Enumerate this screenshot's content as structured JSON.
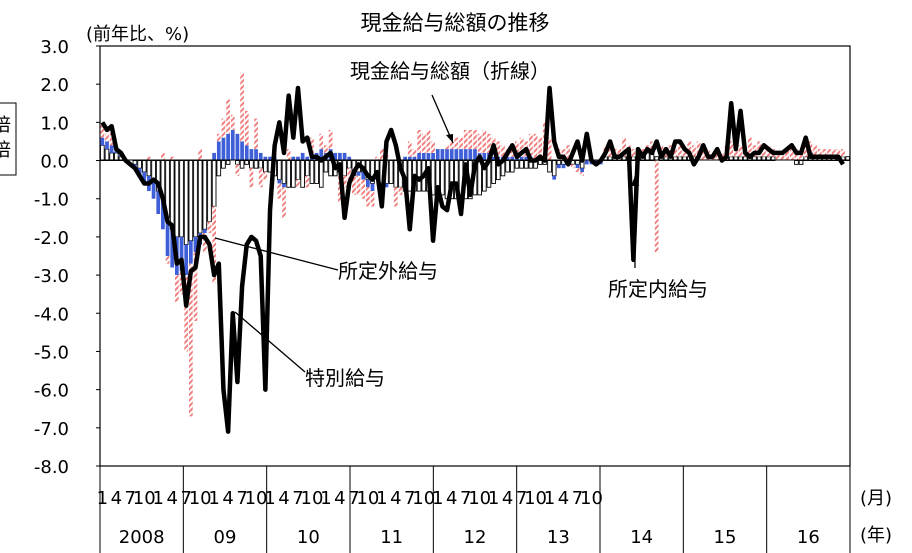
{
  "chart_data": {
    "type": "bar",
    "title": "現金給与総額の推移",
    "ylabel": "(前年比、%)",
    "ylim": [
      -8.0,
      3.0
    ],
    "yticks": [
      "3.0",
      "2.0",
      "1.0",
      "0.0",
      "-1.0",
      "-2.0",
      "-3.0",
      "-4.0",
      "-5.0",
      "-6.0",
      "-7.0",
      "-8.0"
    ],
    "legend_fragments": [
      "倍",
      "倍"
    ],
    "x_unit_month": "(月)",
    "x_unit_year": "(年)",
    "month_tick_labels": [
      "1",
      "4",
      "7",
      "10"
    ],
    "years": [
      "2008",
      "09",
      "10",
      "11",
      "12",
      "13",
      "14",
      "15",
      "16"
    ],
    "annotations": [
      "現金給与総額（折線）",
      "所定外給与",
      "所定内給与",
      "特別給与"
    ],
    "series": [
      {
        "name": "所定内給与",
        "color": "#ffffff",
        "values": [
          0.4,
          0.3,
          0.2,
          0.2,
          0.1,
          0.0,
          0.0,
          -0.1,
          -0.2,
          -0.3,
          -0.4,
          -0.5,
          -0.8,
          -1.0,
          -1.5,
          -1.8,
          -2.0,
          -2.0,
          -2.2,
          -2.1,
          -2.0,
          -1.9,
          -1.8,
          -1.6,
          -1.2,
          -0.4,
          -0.2,
          -0.1,
          0.0,
          -0.1,
          -0.2,
          -0.1,
          -0.2,
          -0.2,
          -0.2,
          -0.3,
          -0.3,
          -0.4,
          -0.5,
          -0.6,
          -0.7,
          -0.7,
          -0.5,
          -0.7,
          -0.4,
          -0.6,
          -0.6,
          -0.7,
          -0.3,
          -0.4,
          -0.4,
          -0.3,
          -0.4,
          -0.2,
          -0.4,
          -0.3,
          -0.3,
          -0.5,
          -0.6,
          -0.3,
          -0.6,
          -0.6,
          -0.6,
          -0.7,
          -0.7,
          -0.8,
          -0.8,
          -0.8,
          -0.8,
          -0.8,
          -0.8,
          -0.9,
          -0.9,
          -0.9,
          -1.0,
          -1.0,
          -1.0,
          -0.9,
          -1.0,
          -1.0,
          -0.9,
          -0.9,
          -0.8,
          -0.7,
          -0.6,
          -0.5,
          -0.4,
          -0.3,
          -0.3,
          -0.2,
          -0.2,
          -0.2,
          -0.2,
          -0.2,
          -0.1,
          -0.1,
          -0.3,
          -0.4,
          -0.1,
          -0.1,
          -0.1,
          -0.1,
          -0.1,
          -0.2,
          0.0,
          0.0,
          0.0,
          0.0,
          0.1,
          0.1,
          0.1,
          0.1,
          0.1,
          0.1,
          0.1,
          0.1,
          0.1,
          0.2,
          0.2,
          0.1,
          0.1,
          0.1,
          0.1,
          0.1,
          0.1,
          0.1,
          0.1,
          0.1,
          0.0,
          0.0,
          0.0,
          0.0,
          0.0,
          0.0,
          0.1,
          0.1,
          0.1,
          0.1,
          0.1,
          0.1,
          0.1,
          0.1,
          0.1,
          0.1,
          0.1,
          0.0,
          0.0,
          0.0,
          0.0,
          -0.1,
          -0.1,
          0.1,
          0.2,
          0.1,
          0.1,
          0.1,
          0.1,
          0.1,
          0.1,
          0.1,
          0.1
        ]
      },
      {
        "name": "所定外給与",
        "color": "#3f5fd8",
        "values": [
          0.2,
          0.2,
          0.2,
          0.1,
          0.1,
          0.0,
          0.0,
          -0.1,
          -0.2,
          -0.3,
          -0.4,
          -0.5,
          -0.6,
          -0.8,
          -1.0,
          -1.0,
          -1.0,
          -0.9,
          -0.8,
          -0.6,
          -0.4,
          -0.3,
          -0.1,
          0.0,
          0.2,
          0.5,
          0.6,
          0.7,
          0.8,
          0.7,
          0.5,
          0.4,
          0.3,
          0.3,
          0.2,
          0.1,
          0.1,
          0.1,
          -0.1,
          -0.1,
          0.0,
          0.1,
          0.1,
          0.2,
          0.1,
          0.1,
          0.2,
          0.3,
          0.2,
          0.3,
          0.2,
          0.2,
          0.2,
          0.1,
          0.0,
          -0.1,
          -0.2,
          -0.2,
          -0.2,
          -0.2,
          -0.1,
          -0.1,
          0.0,
          0.0,
          0.0,
          0.1,
          0.1,
          0.1,
          0.2,
          0.2,
          0.2,
          0.2,
          0.3,
          0.3,
          0.3,
          0.3,
          0.3,
          0.3,
          0.3,
          0.3,
          0.3,
          0.2,
          0.2,
          0.2,
          0.1,
          0.1,
          0.1,
          0.1,
          0.1,
          0.1,
          0.1,
          0.1,
          0.1,
          0.0,
          0.0,
          0.0,
          0.0,
          -0.1,
          -0.1,
          -0.1,
          0.0,
          0.0,
          -0.1,
          -0.1,
          -0.1,
          -0.1,
          -0.1,
          -0.1,
          0.0,
          0.0,
          0.0,
          0.0,
          0.0,
          0.0,
          0.0,
          0.0,
          0.0,
          0.0,
          0.0,
          0.0,
          0.0,
          0.0,
          0.0,
          0.0,
          0.0,
          0.0,
          0.0,
          0.0,
          0.0,
          0.0,
          0.0,
          0.0,
          0.0,
          0.0,
          0.0,
          0.0,
          0.0,
          0.0,
          0.0,
          0.0,
          0.0,
          0.0,
          0.0,
          0.0,
          0.0,
          0.0,
          0.0,
          0.0,
          0.0,
          0.0,
          0.0,
          0.0,
          0.0,
          0.0,
          0.0,
          0.0,
          0.0,
          0.0,
          0.0,
          0.0,
          0.0,
          0.0,
          0.0,
          0.0
        ]
      },
      {
        "name": "特別給与",
        "color": "#f08080",
        "values": [
          0.4,
          0.2,
          0.5,
          0.0,
          0.0,
          0.0,
          0.0,
          0.0,
          0.0,
          0.0,
          0.1,
          0.0,
          0.0,
          0.2,
          -0.2,
          0.1,
          -0.7,
          -0.6,
          -2.0,
          -4.0,
          -1.8,
          0.3,
          -0.5,
          -0.3,
          -2.0,
          0.2,
          0.5,
          0.9,
          0.4,
          -0.3,
          1.8,
          0.9,
          -0.5,
          0.8,
          -0.5,
          -0.2,
          0.0,
          0.2,
          -0.4,
          -0.8,
          0.3,
          0.0,
          -0.2,
          0.0,
          -0.3,
          0.5,
          0.0,
          0.4,
          0.2,
          0.5,
          0.0,
          -0.8,
          -0.3,
          -0.3,
          -0.5,
          -0.5,
          -0.5,
          -0.5,
          -0.4,
          0.1,
          0.3,
          0.2,
          0.0,
          -0.5,
          -0.2,
          0.0,
          0.4,
          0.2,
          0.6,
          0.5,
          0.6,
          0.3,
          0.0,
          0.0,
          0.1,
          0.2,
          0.3,
          0.3,
          0.5,
          0.5,
          0.5,
          0.5,
          0.6,
          0.5,
          0.5,
          0.4,
          0.3,
          0.2,
          0.3,
          0.4,
          0.5,
          0.4,
          0.6,
          0.7,
          0.6,
          1.0,
          0.6,
          0.0,
          0.3,
          0.3,
          0.4,
          -0.1,
          -0.1,
          -0.1,
          0.0,
          0.0,
          0.0,
          0.0,
          0.3,
          0.2,
          0.2,
          0.2,
          0.5,
          0.3,
          0.2,
          0.1,
          0.2,
          0.2,
          0.3,
          -2.4,
          0.3,
          0.2,
          0.3,
          0.2,
          0.4,
          0.2,
          0.4,
          0.3,
          0.5,
          0.3,
          0.3,
          0.2,
          0.2,
          0.2,
          0.3,
          0.4,
          0.3,
          0.3,
          0.3,
          0.5,
          0.3,
          0.4,
          0.3,
          0.3,
          0.2,
          0.2,
          0.2,
          0.3,
          0.3,
          0.3,
          0.2,
          0.5,
          0.3,
          0.3,
          0.2,
          0.2,
          0.2,
          0.2,
          0.2,
          0.2
        ]
      },
      {
        "name": "現金給与総額",
        "color": "#000000",
        "values": [
          1.0,
          0.8,
          0.9,
          0.3,
          0.2,
          0.0,
          -0.1,
          -0.2,
          -0.4,
          -0.6,
          -0.6,
          -0.5,
          -0.6,
          -1.0,
          -1.6,
          -1.7,
          -2.7,
          -2.6,
          -3.8,
          -2.9,
          -2.8,
          -2.0,
          -2.0,
          -2.2,
          -3.0,
          -2.7,
          -6.0,
          -7.1,
          -4.0,
          -5.8,
          -3.3,
          -2.2,
          -2.0,
          -2.1,
          -2.5,
          -6.0,
          -1.3,
          0.4,
          1.0,
          0.2,
          1.7,
          0.6,
          1.9,
          0.5,
          0.6,
          0.1,
          0.1,
          0.0,
          0.1,
          0.2,
          -0.2,
          -0.1,
          -1.5,
          -0.6,
          -0.3,
          -0.1,
          -0.2,
          -0.4,
          -0.5,
          -0.3,
          -1.2,
          0.5,
          0.8,
          0.4,
          -0.2,
          -0.5,
          -1.8,
          -0.4,
          -0.5,
          -0.4,
          -0.2,
          -2.1,
          -0.7,
          -1.2,
          -1.3,
          -0.6,
          -0.6,
          -1.4,
          -0.1,
          -0.9,
          -0.1,
          0.1,
          -0.2,
          0.0,
          0.4,
          -0.1,
          0.0,
          0.2,
          0.4,
          0.1,
          0.2,
          0.3,
          0.0,
          0.0,
          0.1,
          0.0,
          1.9,
          0.5,
          0.1,
          0.1,
          -0.1,
          0.2,
          0.5,
          0.0,
          0.7,
          0.0,
          -0.1,
          0.0,
          0.2,
          0.5,
          0.1,
          0.1,
          0.2,
          0.3,
          -2.6,
          0.3,
          0.1,
          0.3,
          0.2,
          0.5,
          0.1,
          0.3,
          0.1,
          0.5,
          0.5,
          0.3,
          0.2,
          -0.1,
          0.1,
          0.4,
          0.1,
          0.1,
          0.3,
          0.0,
          0.1,
          1.5,
          0.3,
          1.3,
          0.2,
          0.1,
          0.2,
          0.2,
          0.4,
          0.3,
          0.2,
          0.2,
          0.2,
          0.3,
          0.4,
          0.2,
          0.2,
          0.6,
          0.1,
          0.1,
          0.1,
          0.1,
          0.1,
          0.1,
          0.1,
          -0.1
        ]
      }
    ]
  }
}
